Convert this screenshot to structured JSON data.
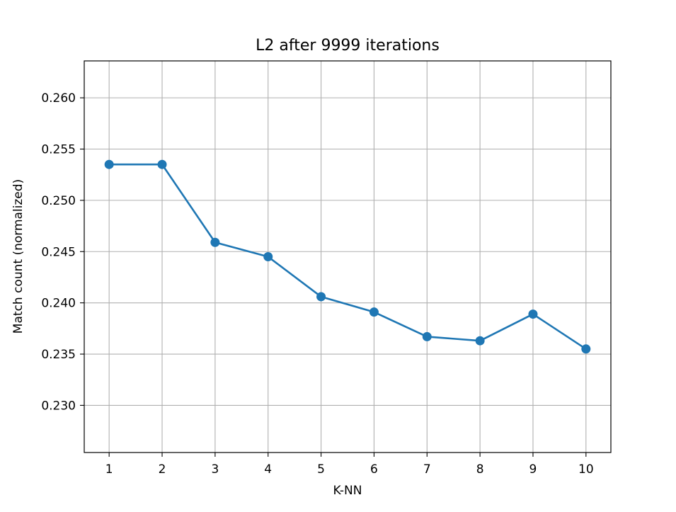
{
  "chart_data": {
    "type": "line",
    "title": "L2 after 9999 iterations",
    "xlabel": "K-NN",
    "ylabel": "Match count (normalized)",
    "x": [
      1,
      2,
      3,
      4,
      5,
      6,
      7,
      8,
      9,
      10
    ],
    "series": [
      {
        "values": [
          0.2535,
          0.2535,
          0.2459,
          0.2445,
          0.2406,
          0.2391,
          0.2367,
          0.2363,
          0.2389,
          0.2355
        ],
        "color": "#1f77b4",
        "marker": "circle"
      }
    ],
    "xlim": [
      0.53,
      10.47
    ],
    "ylim": [
      0.2254,
      0.2636
    ],
    "xticks": [
      "1",
      "2",
      "3",
      "4",
      "5",
      "6",
      "7",
      "8",
      "9",
      "10"
    ],
    "yticks": [
      "0.230",
      "0.235",
      "0.240",
      "0.245",
      "0.250",
      "0.255",
      "0.260"
    ],
    "grid": true,
    "legend": false
  }
}
